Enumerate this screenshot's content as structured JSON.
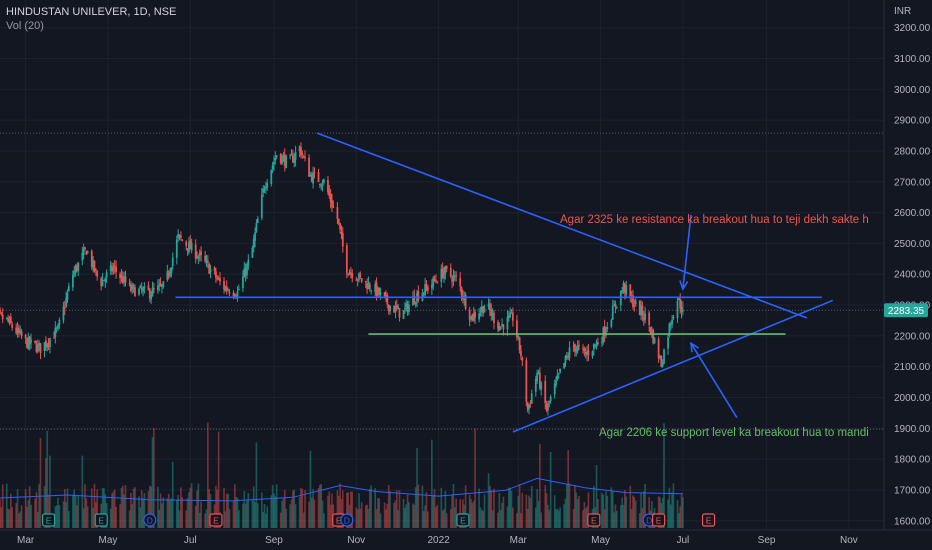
{
  "header": {
    "symbol": "HINDUSTAN UNILEVER, 1D, NSE",
    "volume_label": "Vol (20)"
  },
  "currency": "INR",
  "colors": {
    "background": "#131722",
    "up": "#26a69a",
    "down": "#ef5350",
    "trendline": "#2962ff",
    "support": "#66bb6a",
    "volume_ma": "#2962ff",
    "price_tag": "#26a69a",
    "resistance_text": "#ef5350",
    "support_text": "#66bb6a"
  },
  "chart_data": {
    "type": "candlestick",
    "title": "HINDUSTAN UNILEVER, 1D, NSE",
    "ylim": [
      1570,
      3290
    ],
    "y_ticks": [
      3200,
      3100,
      3000,
      2900,
      2800,
      2700,
      2600,
      2500,
      2400,
      2300,
      2200,
      2100,
      2000,
      1900,
      1800,
      1700,
      1600
    ],
    "y_tick_labels": [
      "3200.00",
      "3100.00",
      "3000.00",
      "2900.00",
      "2800.00",
      "2700.00",
      "2600.00",
      "2500.00",
      "2400.00",
      "2300.00",
      "2200.00",
      "2100.00",
      "2000.00",
      "1900.00",
      "1800.00",
      "1700.00",
      "1600.00"
    ],
    "x_labels": [
      "Mar",
      "May",
      "Jul",
      "Sep",
      "Nov",
      "2022",
      "Mar",
      "May",
      "Jul",
      "Sep",
      "Nov"
    ],
    "x_label_dates": [
      "2021-03-01",
      "2021-05-01",
      "2021-07-01",
      "2021-09-01",
      "2021-11-01",
      "2022-01-01",
      "2022-03-01",
      "2022-05-01",
      "2022-07-01",
      "2022-09-01",
      "2022-11-01"
    ],
    "price_path": [
      [
        "2021-02-01",
        2280
      ],
      [
        "2021-02-15",
        2250
      ],
      [
        "2021-03-01",
        2180
      ],
      [
        "2021-03-12",
        2160
      ],
      [
        "2021-03-25",
        2220
      ],
      [
        "2021-04-05",
        2400
      ],
      [
        "2021-04-15",
        2480
      ],
      [
        "2021-04-25",
        2370
      ],
      [
        "2021-05-05",
        2420
      ],
      [
        "2021-05-18",
        2350
      ],
      [
        "2021-06-01",
        2340
      ],
      [
        "2021-06-12",
        2360
      ],
      [
        "2021-06-22",
        2520
      ],
      [
        "2021-07-05",
        2470
      ],
      [
        "2021-07-15",
        2420
      ],
      [
        "2021-07-25",
        2360
      ],
      [
        "2021-08-05",
        2340
      ],
      [
        "2021-08-15",
        2460
      ],
      [
        "2021-08-25",
        2690
      ],
      [
        "2021-09-03",
        2790
      ],
      [
        "2021-09-12",
        2760
      ],
      [
        "2021-09-20",
        2810
      ],
      [
        "2021-09-28",
        2720
      ],
      [
        "2021-10-08",
        2700
      ],
      [
        "2021-10-18",
        2580
      ],
      [
        "2021-10-25",
        2420
      ],
      [
        "2021-11-05",
        2380
      ],
      [
        "2021-11-15",
        2350
      ],
      [
        "2021-11-25",
        2300
      ],
      [
        "2021-12-05",
        2270
      ],
      [
        "2021-12-15",
        2330
      ],
      [
        "2021-12-25",
        2360
      ],
      [
        "2022-01-05",
        2410
      ],
      [
        "2022-01-15",
        2380
      ],
      [
        "2022-01-25",
        2260
      ],
      [
        "2022-02-05",
        2300
      ],
      [
        "2022-02-15",
        2230
      ],
      [
        "2022-02-25",
        2260
      ],
      [
        "2022-03-03",
        2140
      ],
      [
        "2022-03-08",
        1960
      ],
      [
        "2022-03-15",
        2080
      ],
      [
        "2022-03-22",
        1960
      ],
      [
        "2022-04-01",
        2080
      ],
      [
        "2022-04-10",
        2170
      ],
      [
        "2022-04-20",
        2140
      ],
      [
        "2022-05-01",
        2190
      ],
      [
        "2022-05-10",
        2280
      ],
      [
        "2022-05-18",
        2360
      ],
      [
        "2022-05-25",
        2310
      ],
      [
        "2022-06-05",
        2250
      ],
      [
        "2022-06-15",
        2110
      ],
      [
        "2022-06-22",
        2250
      ],
      [
        "2022-06-27",
        2320
      ],
      [
        "2022-07-01",
        2283
      ]
    ],
    "last_price": 2283,
    "last_price_label": "2283.35",
    "volume_ylim": [
      0,
      10
    ],
    "volume_ma_path": [
      [
        "2021-02-01",
        2.5
      ],
      [
        "2021-04-01",
        2.8
      ],
      [
        "2021-06-01",
        2.4
      ],
      [
        "2021-08-01",
        2.3
      ],
      [
        "2021-09-15",
        2.6
      ],
      [
        "2021-10-20",
        3.6
      ],
      [
        "2021-11-15",
        3.1
      ],
      [
        "2022-01-01",
        2.7
      ],
      [
        "2022-02-20",
        3.2
      ],
      [
        "2022-03-15",
        4.2
      ],
      [
        "2022-04-20",
        3.4
      ],
      [
        "2022-05-20",
        3.0
      ],
      [
        "2022-07-01",
        2.9
      ]
    ],
    "lines": [
      {
        "kind": "trendline",
        "from": [
          "2021-10-03",
          2858
        ],
        "to": [
          "2022-10-01",
          2258
        ]
      },
      {
        "kind": "trendline",
        "from": [
          "2022-02-25",
          1888
        ],
        "to": [
          "2022-10-20",
          2315
        ]
      },
      {
        "kind": "horizontal",
        "from": [
          "2021-06-20",
          2325
        ],
        "to": [
          "2022-10-12",
          2325
        ]
      },
      {
        "kind": "horizontal",
        "from": [
          "2021-11-10",
          2206
        ],
        "to": [
          "2022-09-15",
          2206
        ]
      },
      {
        "kind": "dashed-level",
        "value": 2858
      },
      {
        "kind": "dashed-level",
        "value": 1897
      },
      {
        "kind": "dashed-level",
        "value": 2283
      }
    ],
    "arrows": [
      {
        "from": [
          "2022-07-07",
          2593
        ],
        "to": [
          "2022-07-01",
          2352
        ]
      },
      {
        "from": [
          "2022-08-10",
          1935
        ],
        "to": [
          "2022-07-07",
          2176
        ]
      }
    ],
    "event_markers": [
      {
        "date": "2021-03-18",
        "letter": "E"
      },
      {
        "date": "2021-04-26",
        "letter": "E"
      },
      {
        "date": "2021-06-01",
        "letter": "D"
      },
      {
        "date": "2021-07-20",
        "letter": "E"
      },
      {
        "date": "2021-10-19",
        "letter": "E"
      },
      {
        "date": "2021-10-25",
        "letter": "D"
      },
      {
        "date": "2022-01-19",
        "letter": "E"
      },
      {
        "date": "2022-04-26",
        "letter": "E"
      },
      {
        "date": "2022-06-06",
        "letter": "D"
      },
      {
        "date": "2022-06-13",
        "letter": "E"
      },
      {
        "date": "2022-07-20",
        "letter": "E"
      }
    ]
  },
  "annotations": {
    "resistance_text": "Agar 2325 ke resistance ka breakout hua to teji dekh sakte h",
    "support_text": "Agar 2206 ke support level ka breakout hua to mandi"
  }
}
